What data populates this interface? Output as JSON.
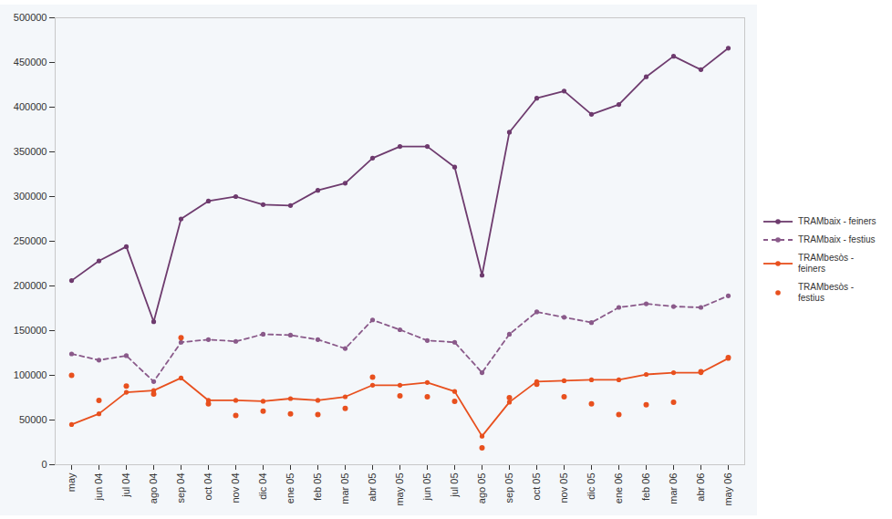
{
  "chart_data": {
    "type": "line",
    "categories": [
      "may",
      "jun 04",
      "jul 04",
      "ago 04",
      "sep 04",
      "oct 04",
      "nov 04",
      "dic 04",
      "ene 05",
      "feb 05",
      "mar 05",
      "abr 05",
      "may 05",
      "jun 05",
      "jul 05",
      "ago 05",
      "sep 05",
      "oct 05",
      "nov 05",
      "dic 05",
      "ene 06",
      "feb 06",
      "mar 06",
      "abr 06",
      "may 06"
    ],
    "series": [
      {
        "name": "TRAMbaix - feiners",
        "type": "line",
        "color": "#6e3b6e",
        "marker": "circle",
        "line_style": "solid",
        "values": [
          206000,
          228000,
          244000,
          160000,
          275000,
          295000,
          300000,
          291000,
          290000,
          307000,
          315000,
          343000,
          356000,
          356000,
          333000,
          212000,
          372000,
          410000,
          418000,
          392000,
          403000,
          434000,
          457000,
          442000,
          466000
        ]
      },
      {
        "name": "TRAMbaix - festius",
        "type": "line",
        "color": "#8a5a8a",
        "marker": "circle",
        "line_style": "dashed",
        "values": [
          124000,
          117000,
          122000,
          93000,
          137000,
          140000,
          138000,
          146000,
          145000,
          140000,
          130000,
          162000,
          151000,
          139000,
          137000,
          103000,
          146000,
          171000,
          165000,
          159000,
          176000,
          180000,
          177000,
          176000,
          189000
        ]
      },
      {
        "name": "TRAMbesòs - feiners",
        "type": "line",
        "color": "#e8501e",
        "marker": "circle",
        "line_style": "solid",
        "values": [
          45000,
          57000,
          81000,
          83000,
          97000,
          72000,
          72000,
          71000,
          74000,
          72000,
          76000,
          89000,
          89000,
          92000,
          82000,
          32000,
          70000,
          93000,
          94000,
          95000,
          95000,
          101000,
          103000,
          103000,
          119000
        ]
      },
      {
        "name": "TRAMbesòs - festius",
        "type": "scatter",
        "color": "#e8501e",
        "marker": "circle",
        "values": [
          100000,
          72000,
          88000,
          79000,
          142000,
          68000,
          55000,
          60000,
          57000,
          56000,
          63000,
          98000,
          77000,
          76000,
          71000,
          19000,
          75000,
          90000,
          76000,
          68000,
          56000,
          67000,
          70000,
          104000,
          120000
        ]
      }
    ],
    "ylim": [
      0,
      500000
    ],
    "yticks": [
      0,
      50000,
      100000,
      150000,
      200000,
      250000,
      300000,
      350000,
      400000,
      450000,
      500000
    ],
    "grid": false,
    "legend": "right"
  }
}
